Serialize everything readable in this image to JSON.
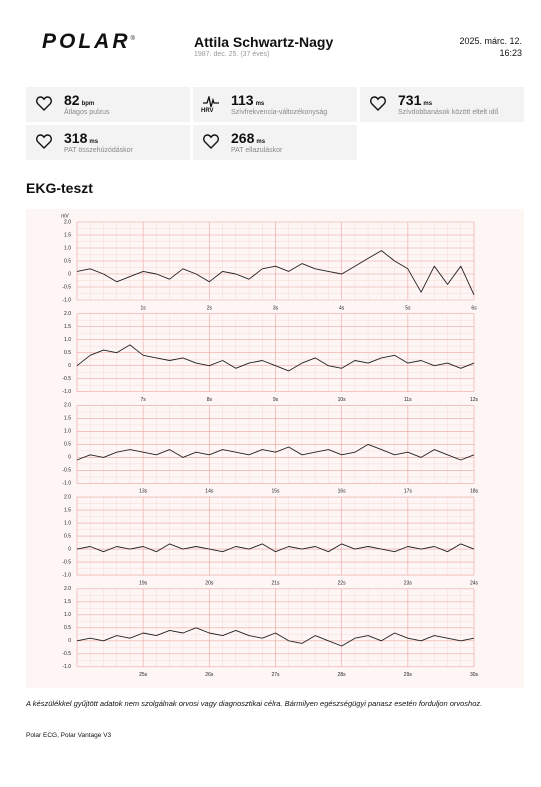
{
  "header": {
    "logo": "POLAR",
    "logo_mark": "®",
    "name": "Attila Schwartz-Nagy",
    "birth": "1987. dec. 25. (37 éves)",
    "date": "2025. márc. 12.",
    "time": "16:23"
  },
  "metrics": [
    {
      "value": "82",
      "unit": "bpm",
      "label": "Átlagos pulzus"
    },
    {
      "icon_label": "HRV",
      "value": "113",
      "unit": "ms",
      "label": "Szívfrekvencia-változékonyság"
    },
    {
      "value": "731",
      "unit": "ms",
      "label": "Szívdobbanások között eltelt idő"
    },
    {
      "value": "318",
      "unit": "ms",
      "label": "PAT összehúzódáskor"
    },
    {
      "value": "268",
      "unit": "ms",
      "label": "PAT ellazuláskor"
    }
  ],
  "section_title": "EKG-teszt",
  "ecg": {
    "y_unit": "mV",
    "ylim": [
      -1,
      2
    ],
    "yticks": [
      {
        "value": 2,
        "label": "2.0"
      },
      1.5,
      {
        "value": 1,
        "label": "1.0"
      },
      0.5,
      0,
      -0.5,
      {
        "value": -1,
        "label": "-1.0"
      }
    ],
    "strips": [
      {
        "xlim": [
          0,
          6
        ],
        "xticks": [
          {
            "value": 1,
            "label": "1s"
          },
          {
            "value": 2,
            "label": "2s"
          },
          {
            "value": 3,
            "label": "3s"
          },
          {
            "value": 4,
            "label": "4s"
          },
          {
            "value": 5,
            "label": "5s"
          },
          {
            "value": 6,
            "label": "6s"
          }
        ],
        "values": [
          0.1,
          0.2,
          0.0,
          -0.3,
          -0.1,
          0.1,
          0.0,
          -0.2,
          0.2,
          0.0,
          -0.3,
          0.1,
          0.0,
          -0.2,
          0.2,
          0.3,
          0.1,
          0.4,
          0.2,
          0.1,
          0.0,
          0.3,
          0.6,
          0.9,
          0.5,
          0.2,
          -0.7,
          0.3,
          -0.4,
          0.3,
          -0.8
        ]
      },
      {
        "xlim": [
          6,
          12
        ],
        "xticks": [
          {
            "value": 7,
            "label": "7s"
          },
          {
            "value": 8,
            "label": "8s"
          },
          {
            "value": 9,
            "label": "9s"
          },
          {
            "value": 10,
            "label": "10s"
          },
          {
            "value": 11,
            "label": "11s"
          },
          {
            "value": 12,
            "label": "12s"
          }
        ],
        "values": [
          0.0,
          0.4,
          0.6,
          0.5,
          0.8,
          0.4,
          0.3,
          0.2,
          0.3,
          0.1,
          0.0,
          0.2,
          -0.1,
          0.1,
          0.2,
          0.0,
          -0.2,
          0.1,
          0.3,
          0.0,
          -0.1,
          0.2,
          0.1,
          0.3,
          0.4,
          0.1,
          0.2,
          0.0,
          0.1,
          -0.1,
          0.1
        ]
      },
      {
        "xlim": [
          12,
          18
        ],
        "xticks": [
          {
            "value": 13,
            "label": "13s"
          },
          {
            "value": 14,
            "label": "14s"
          },
          {
            "value": 15,
            "label": "15s"
          },
          {
            "value": 16,
            "label": "16s"
          },
          {
            "value": 17,
            "label": "17s"
          },
          {
            "value": 18,
            "label": "18s"
          }
        ],
        "values": [
          -0.1,
          0.1,
          0.0,
          0.2,
          0.3,
          0.2,
          0.1,
          0.3,
          0.0,
          0.2,
          0.1,
          0.3,
          0.2,
          0.1,
          0.3,
          0.2,
          0.4,
          0.1,
          0.2,
          0.3,
          0.1,
          0.2,
          0.5,
          0.3,
          0.1,
          0.2,
          0.0,
          0.3,
          0.1,
          -0.1,
          0.1
        ]
      },
      {
        "xlim": [
          18,
          24
        ],
        "xticks": [
          {
            "value": 19,
            "label": "19s"
          },
          {
            "value": 20,
            "label": "20s"
          },
          {
            "value": 21,
            "label": "21s"
          },
          {
            "value": 22,
            "label": "22s"
          },
          {
            "value": 23,
            "label": "23s"
          },
          {
            "value": 24,
            "label": "24s"
          }
        ],
        "values": [
          0.0,
          0.1,
          -0.1,
          0.1,
          0.0,
          0.1,
          -0.1,
          0.2,
          0.0,
          0.1,
          0.0,
          -0.1,
          0.1,
          0.0,
          0.2,
          -0.1,
          0.1,
          0.0,
          0.1,
          -0.1,
          0.2,
          0.0,
          0.1,
          0.0,
          -0.1,
          0.1,
          0.0,
          0.1,
          -0.1,
          0.2,
          0.0
        ]
      },
      {
        "xlim": [
          24,
          30
        ],
        "xticks": [
          {
            "value": 25,
            "label": "25s"
          },
          {
            "value": 26,
            "label": "26s"
          },
          {
            "value": 27,
            "label": "27s"
          },
          {
            "value": 28,
            "label": "28s"
          },
          {
            "value": 29,
            "label": "29s"
          },
          {
            "value": 30,
            "label": "30s"
          }
        ],
        "values": [
          0.0,
          0.1,
          0.0,
          0.2,
          0.1,
          0.3,
          0.2,
          0.4,
          0.3,
          0.5,
          0.3,
          0.2,
          0.4,
          0.2,
          0.1,
          0.3,
          0.0,
          -0.1,
          0.2,
          0.0,
          -0.2,
          0.1,
          0.2,
          0.0,
          0.3,
          0.1,
          0.0,
          0.2,
          0.1,
          0.0,
          0.1
        ]
      }
    ]
  },
  "disclaimer": "A készülékkel gyűjtött adatok nem szolgálnak orvosi vagy diagnosztikai célra. Bármilyen egészségügyi panasz esetén forduljon orvoshoz.",
  "footer": "Polar ECG, Polar Vantage V3"
}
